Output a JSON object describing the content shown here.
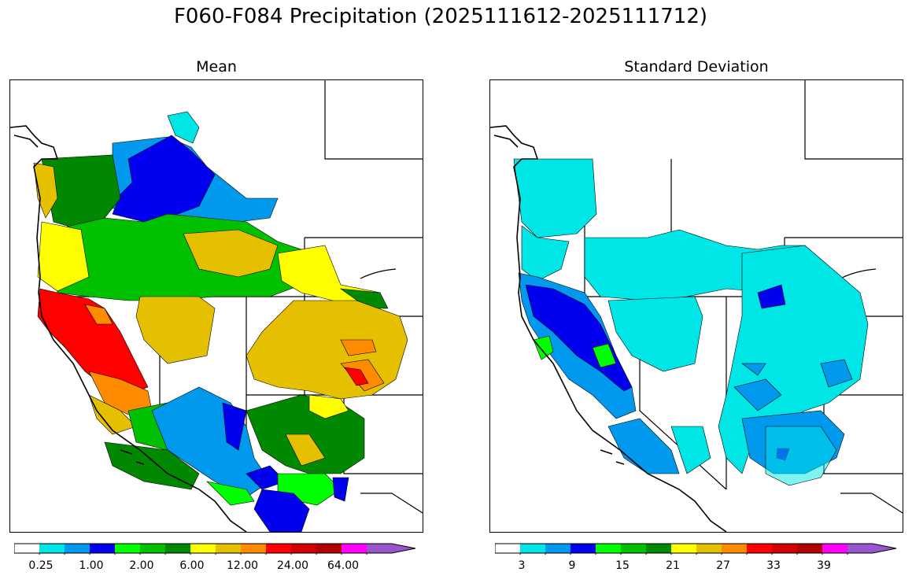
{
  "title": "F060-F084 Precipitation (2025111612-2025111712)",
  "panels": [
    {
      "title": "Mean",
      "colorbar": {
        "colors": [
          "#ffffff",
          "#00e5e5",
          "#0099ee",
          "#0000ee",
          "#00ff00",
          "#00c000",
          "#008800",
          "#ffff00",
          "#e5c000",
          "#ff8c00",
          "#ff0000",
          "#d00000",
          "#b00000",
          "#ff00ff",
          "#9955cc"
        ],
        "labels": [
          "0.25",
          "1.00",
          "2.00",
          "6.00",
          "12.00",
          "24.00",
          "64.00"
        ]
      }
    },
    {
      "title": "Standard Deviation",
      "colorbar": {
        "colors": [
          "#ffffff",
          "#00e5e5",
          "#0099ee",
          "#0000ee",
          "#00ff00",
          "#00c000",
          "#008800",
          "#ffff00",
          "#e5c000",
          "#ff8c00",
          "#ff0000",
          "#d00000",
          "#b00000",
          "#ff00ff",
          "#9955cc"
        ],
        "labels": [
          "3",
          "9",
          "15",
          "21",
          "27",
          "33",
          "39"
        ]
      }
    }
  ]
}
